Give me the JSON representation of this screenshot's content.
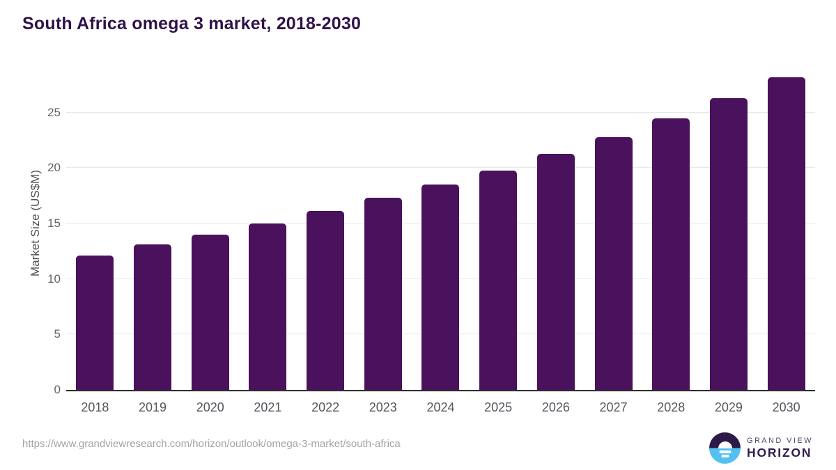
{
  "page": {
    "title": "South Africa omega 3 market, 2018-2030"
  },
  "chart_data": {
    "type": "bar",
    "title": "South Africa omega 3 market, 2018-2030",
    "categories": [
      "2018",
      "2019",
      "2020",
      "2021",
      "2022",
      "2023",
      "2024",
      "2025",
      "2026",
      "2027",
      "2028",
      "2029",
      "2030"
    ],
    "values": [
      12.1,
      13.1,
      14.0,
      15.0,
      16.1,
      17.3,
      18.5,
      19.8,
      21.3,
      22.8,
      24.5,
      26.3,
      28.2
    ],
    "xlabel": "",
    "ylabel": "Market Size (US$M)",
    "ylim": [
      0,
      30
    ],
    "yticks": [
      0,
      5,
      10,
      15,
      20,
      25
    ],
    "grid": true,
    "legend": false,
    "bar_color": "#4a115c"
  },
  "footer": {
    "source_url": "https://www.grandviewresearch.com/horizon/outlook/omega-3-market/south-africa",
    "logo": {
      "top": "GRAND VIEW",
      "bottom": "HORIZON"
    }
  },
  "colors": {
    "bar": "#4a115c",
    "title_text": "#2f1349",
    "axis_line": "#2d2d2d",
    "gridline": "#e8e8e8",
    "tick_text": "#5f6368",
    "logo_purple": "#2e1a47",
    "logo_blue": "#54c0ef"
  }
}
